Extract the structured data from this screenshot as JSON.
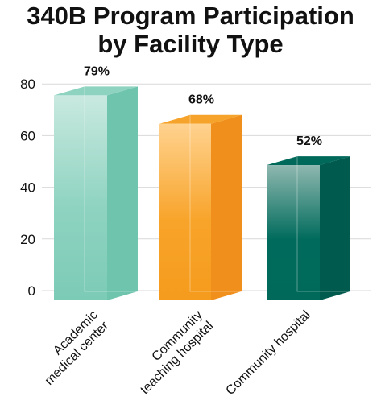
{
  "chart_data": {
    "type": "bar",
    "title_lines": [
      "340B Program Participation",
      "by Facility Type"
    ],
    "categories": [
      [
        "Academic",
        "medical center"
      ],
      [
        "Community",
        "teaching hospital"
      ],
      [
        "Community hospital"
      ]
    ],
    "values": [
      79,
      68,
      52
    ],
    "data_labels": [
      "79%",
      "68%",
      "52%"
    ],
    "yticks": [
      0,
      20,
      40,
      60,
      80
    ],
    "ylim": [
      0,
      80
    ],
    "xlabel": "",
    "ylabel": "",
    "grid": true,
    "legend": "none",
    "bar_colors": [
      {
        "top": "#c9e9e0",
        "front_mid": "#8ed3c0",
        "front_bottom": "#7ccbb7",
        "side": "#6fc4ae",
        "cap": "#8ed3c0"
      },
      {
        "top": "#ffd28f",
        "front_mid": "#f8a42a",
        "front_bottom": "#f59b1d",
        "side": "#f08f1c",
        "cap": "#f5a32a"
      },
      {
        "top": "#8fb8b0",
        "front_mid": "#006b5c",
        "front_bottom": "#00695a",
        "side": "#005a4d",
        "cap": "#00695a"
      }
    ]
  }
}
